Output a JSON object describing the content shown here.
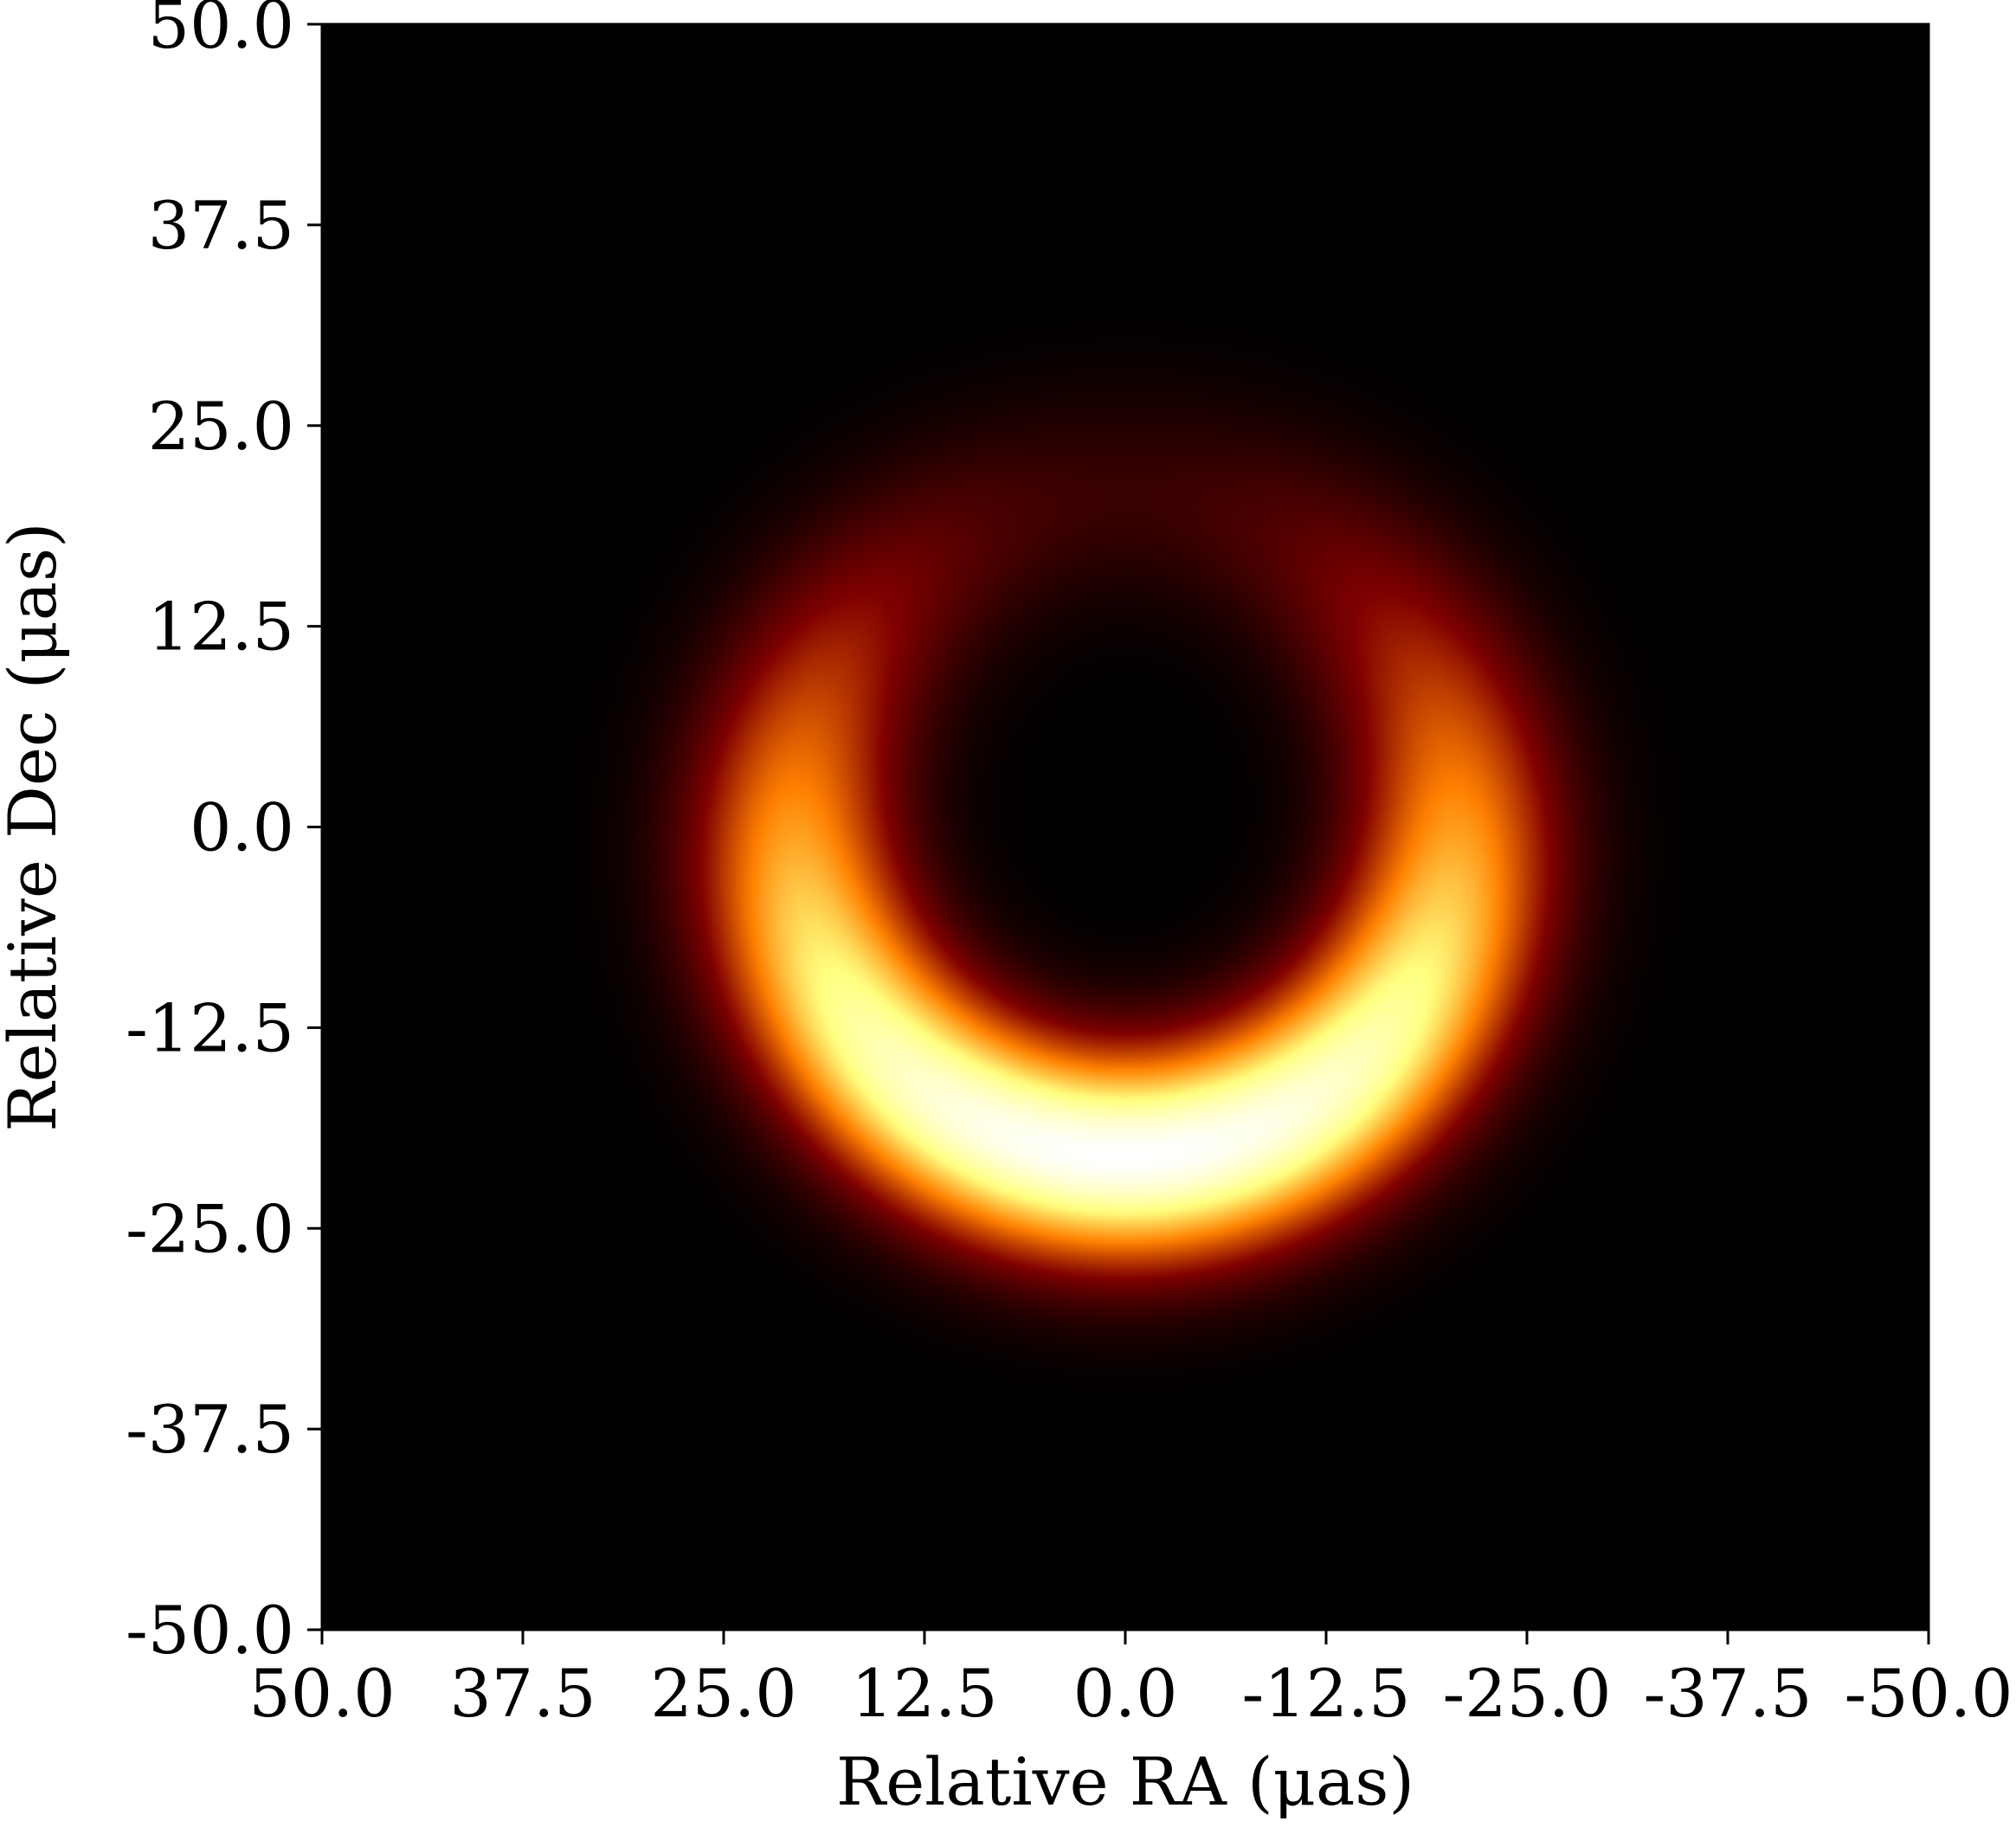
{
  "chart_data": {
    "type": "heatmap",
    "title": "",
    "xlabel": "Relative RA (μas)",
    "ylabel": "Relative Dec (μas)",
    "xlim": [
      50.0,
      -50.0
    ],
    "ylim": [
      -50.0,
      50.0
    ],
    "x_ticks": [
      50.0,
      37.5,
      25.0,
      12.5,
      0.0,
      -12.5,
      -25.0,
      -37.5,
      -50.0
    ],
    "x_tick_labels": [
      "50.0",
      "37.5",
      "25.0",
      "12.5",
      "0.0",
      "-12.5",
      "-25.0",
      "-37.5",
      "-50.0"
    ],
    "y_ticks": [
      50.0,
      37.5,
      25.0,
      12.5,
      0.0,
      -12.5,
      -25.0,
      -37.5,
      -50.0
    ],
    "y_tick_labels": [
      "50.0",
      "37.5",
      "25.0",
      "12.5",
      "0.0",
      "-12.5",
      "-25.0",
      "-37.5",
      "-50.0"
    ],
    "grid": false,
    "colormap": "afmhot",
    "background_color": "#000000",
    "image_model": {
      "description": "Asymmetric emission ring (crescent), brightest toward the south",
      "center_ra": 0.0,
      "center_dec": 0.0,
      "ring_radius": 20.5,
      "ring_width_sigma": 4.6,
      "brightness_minimum_position_angle_deg": 0,
      "brightness_maximum_position_angle_deg": 180,
      "brightness_asymmetry": 0.8,
      "peak_ra": 0.0,
      "peak_dec": -19.0
    }
  }
}
